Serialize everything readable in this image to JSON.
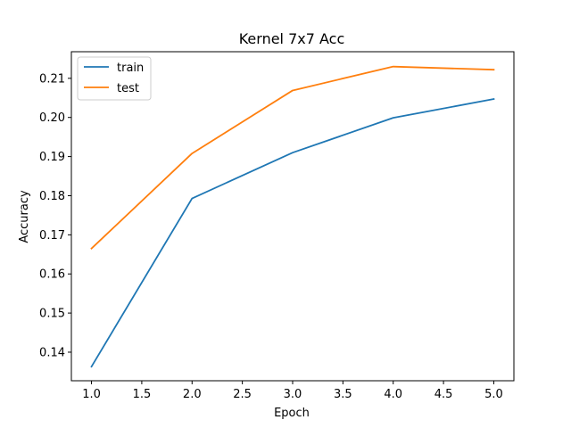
{
  "chart_data": {
    "type": "line",
    "title": "Kernel 7x7 Acc",
    "xlabel": "Epoch",
    "ylabel": "Accuracy",
    "x": [
      1.0,
      2.0,
      3.0,
      4.0,
      5.0
    ],
    "xlim": [
      0.8,
      5.2
    ],
    "ylim": [
      0.1327,
      0.2168
    ],
    "xticks": [
      1.0,
      1.5,
      2.0,
      2.5,
      3.0,
      3.5,
      4.0,
      4.5,
      5.0
    ],
    "xtick_labels": [
      "1.0",
      "1.5",
      "2.0",
      "2.5",
      "3.0",
      "3.5",
      "4.0",
      "4.5",
      "5.0"
    ],
    "yticks": [
      0.14,
      0.15,
      0.16,
      0.17,
      0.18,
      0.19,
      0.2,
      0.21
    ],
    "ytick_labels": [
      "0.14",
      "0.15",
      "0.16",
      "0.17",
      "0.18",
      "0.19",
      "0.20",
      "0.21"
    ],
    "grid": false,
    "legend_position": "top-left",
    "series": [
      {
        "name": "train",
        "color": "#1f77b4",
        "values": [
          0.1363,
          0.1793,
          0.191,
          0.1999,
          0.2047
        ]
      },
      {
        "name": "test",
        "color": "#ff7f0e",
        "values": [
          0.1665,
          0.1908,
          0.2069,
          0.213,
          0.2122
        ]
      }
    ]
  }
}
